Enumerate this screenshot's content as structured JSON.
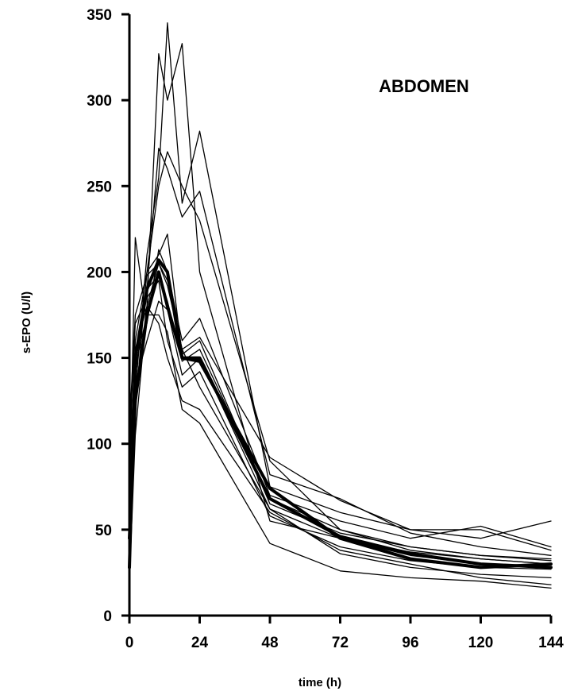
{
  "chart_data": {
    "type": "line",
    "title": "",
    "annotation": "ABDOMEN",
    "xlabel": "time (h)",
    "ylabel": "s-EPO (U/l)",
    "xlim": [
      0,
      144
    ],
    "ylim": [
      0,
      350
    ],
    "x_ticks": [
      0,
      24,
      48,
      72,
      96,
      120,
      144
    ],
    "y_ticks": [
      0,
      50,
      100,
      150,
      200,
      250,
      300,
      350
    ],
    "grid": false,
    "legend": "none",
    "series": [
      {
        "x": [
          0,
          2,
          6,
          10,
          13,
          18,
          24,
          48,
          72,
          96,
          120,
          144
        ],
        "y": [
          20,
          105,
          180,
          327,
          300,
          333,
          200,
          55,
          45,
          37,
          33,
          30
        ]
      },
      {
        "x": [
          0,
          2,
          6,
          10,
          13,
          18,
          24,
          48,
          72,
          96,
          120,
          144
        ],
        "y": [
          30,
          120,
          200,
          250,
          270,
          250,
          230,
          90,
          50,
          40,
          35,
          33
        ]
      },
      {
        "x": [
          0,
          2,
          6,
          10,
          13,
          18,
          24,
          48,
          72,
          96,
          120,
          144
        ],
        "y": [
          40,
          130,
          210,
          255,
          345,
          240,
          282,
          75,
          60,
          50,
          50,
          38
        ]
      },
      {
        "x": [
          0,
          2,
          6,
          10,
          13,
          18,
          24,
          48,
          72,
          96,
          120,
          144
        ],
        "y": [
          50,
          140,
          190,
          272,
          260,
          232,
          247,
          82,
          68,
          48,
          40,
          35
        ]
      },
      {
        "x": [
          0,
          2,
          6,
          10,
          13,
          18,
          24,
          48,
          72,
          96,
          120,
          144
        ],
        "y": [
          70,
          220,
          170,
          213,
          200,
          160,
          173,
          70,
          55,
          45,
          52,
          40
        ]
      },
      {
        "x": [
          0,
          2,
          6,
          10,
          13,
          18,
          24,
          48,
          72,
          96,
          120,
          144
        ],
        "y": [
          80,
          160,
          200,
          210,
          222,
          152,
          160,
          65,
          48,
          40,
          35,
          32
        ]
      },
      {
        "x": [
          0,
          2,
          6,
          10,
          13,
          18,
          24,
          48,
          72,
          96,
          120,
          144
        ],
        "y": [
          60,
          150,
          190,
          198,
          183,
          148,
          155,
          68,
          50,
          38,
          33,
          30
        ]
      },
      {
        "x": [
          0,
          2,
          6,
          10,
          13,
          18,
          24,
          48,
          72,
          96,
          120,
          144
        ],
        "y": [
          90,
          135,
          160,
          183,
          178,
          140,
          150,
          62,
          45,
          35,
          30,
          28
        ]
      },
      {
        "x": [
          0,
          2,
          6,
          10,
          13,
          18,
          24,
          48,
          72,
          96,
          120,
          144
        ],
        "y": [
          100,
          170,
          185,
          195,
          160,
          133,
          142,
          58,
          40,
          32,
          28,
          27
        ]
      },
      {
        "x": [
          0,
          2,
          6,
          10,
          13,
          18,
          24,
          48,
          72,
          96,
          120,
          144
        ],
        "y": [
          110,
          175,
          198,
          205,
          192,
          155,
          133,
          62,
          36,
          28,
          24,
          22
        ]
      },
      {
        "x": [
          0,
          2,
          6,
          10,
          13,
          18,
          24,
          48,
          72,
          96,
          120,
          144
        ],
        "y": [
          65,
          155,
          180,
          170,
          150,
          125,
          120,
          60,
          38,
          30,
          22,
          18
        ]
      },
      {
        "x": [
          0,
          2,
          6,
          10,
          13,
          18,
          24,
          48,
          72,
          96,
          120,
          144
        ],
        "y": [
          55,
          145,
          175,
          175,
          165,
          120,
          112,
          42,
          26,
          22,
          20,
          16
        ]
      },
      {
        "x": [
          0,
          2,
          6,
          10,
          13,
          18,
          24,
          48,
          72,
          96,
          120,
          144
        ],
        "y": [
          35,
          120,
          180,
          205,
          195,
          155,
          162,
          92,
          67,
          50,
          45,
          55
        ]
      },
      {
        "x": [
          0,
          2,
          6,
          10,
          13,
          18,
          24,
          48,
          72,
          96,
          120,
          144
        ],
        "y": [
          45,
          125,
          175,
          200,
          180,
          150,
          148,
          74,
          45,
          33,
          28,
          30
        ],
        "thick": true
      },
      {
        "x": [
          0,
          2,
          6,
          10,
          13,
          18,
          24,
          48,
          72,
          96,
          120,
          144
        ],
        "y": [
          28,
          150,
          190,
          207,
          200,
          150,
          150,
          68,
          46,
          36,
          30,
          28
        ],
        "thick": true
      }
    ]
  }
}
